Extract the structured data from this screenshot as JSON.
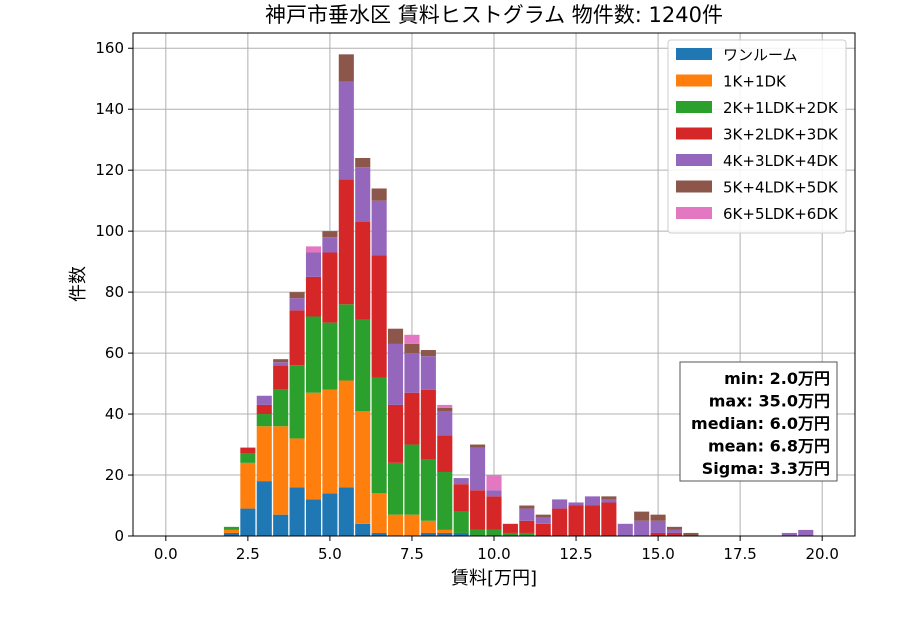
{
  "chart_data": {
    "type": "bar",
    "stacked": true,
    "title": "神戸市垂水区 賃料ヒストグラム 物件数: 1240件",
    "xlabel": "賃料[万円]",
    "ylabel": "件数",
    "xlim": [
      -1.0,
      21.0
    ],
    "ylim": [
      0,
      165
    ],
    "xticks": [
      0.0,
      2.5,
      5.0,
      7.5,
      10.0,
      12.5,
      15.0,
      17.5,
      20.0
    ],
    "xtick_labels": [
      "0.0",
      "2.5",
      "5.0",
      "7.5",
      "10.0",
      "12.5",
      "15.0",
      "17.5",
      "20.0"
    ],
    "yticks": [
      0,
      20,
      40,
      60,
      80,
      100,
      120,
      140,
      160
    ],
    "ytick_labels": [
      "0",
      "20",
      "40",
      "60",
      "80",
      "100",
      "120",
      "140",
      "160"
    ],
    "grid": true,
    "legend_position": "top-right",
    "bin_width": 0.5,
    "x": [
      2.0,
      2.5,
      3.0,
      3.5,
      4.0,
      4.5,
      5.0,
      5.5,
      6.0,
      6.5,
      7.0,
      7.5,
      8.0,
      8.5,
      9.0,
      9.5,
      10.0,
      10.5,
      11.0,
      11.5,
      12.0,
      12.5,
      13.0,
      13.5,
      14.0,
      14.5,
      15.0,
      15.5,
      16.0,
      19.0,
      19.5
    ],
    "series": [
      {
        "name": "ワンルーム",
        "color": "#1f77b4",
        "values": [
          1,
          9,
          18,
          7,
          16,
          12,
          14,
          16,
          4,
          1,
          0,
          0,
          1,
          1,
          1,
          0,
          0,
          0,
          0,
          0,
          0,
          0,
          0,
          0,
          0,
          0,
          0,
          0,
          0,
          0,
          0
        ]
      },
      {
        "name": "1K+1DK",
        "color": "#ff7f0e",
        "values": [
          1,
          15,
          18,
          29,
          16,
          35,
          34,
          35,
          37,
          13,
          7,
          7,
          4,
          1,
          0,
          0,
          0,
          0,
          0,
          0,
          0,
          0,
          0,
          0,
          0,
          0,
          0,
          0,
          0,
          0,
          0
        ]
      },
      {
        "name": "2K+1LDK+2DK",
        "color": "#2ca02c",
        "values": [
          1,
          3,
          4,
          12,
          24,
          25,
          22,
          25,
          30,
          38,
          17,
          23,
          20,
          19,
          7,
          2,
          2,
          1,
          1,
          0,
          0,
          0,
          0,
          0,
          0,
          0,
          0,
          0,
          0,
          0,
          0
        ]
      },
      {
        "name": "3K+2LDK+3DK",
        "color": "#d62728",
        "values": [
          0,
          2,
          3,
          8,
          18,
          13,
          23,
          41,
          32,
          40,
          19,
          17,
          23,
          12,
          9,
          13,
          11,
          3,
          4,
          4,
          9,
          10,
          10,
          11,
          0,
          0,
          1,
          1,
          0,
          0,
          0
        ]
      },
      {
        "name": "4K+3LDK+4DK",
        "color": "#9467bd",
        "values": [
          0,
          0,
          3,
          1,
          4,
          8,
          5,
          32,
          18,
          18,
          20,
          13,
          11,
          8,
          2,
          14,
          2,
          0,
          4,
          2,
          3,
          1,
          3,
          1,
          4,
          5,
          4,
          1,
          0,
          1,
          2
        ]
      },
      {
        "name": "5K+4LDK+5DK",
        "color": "#8c564b",
        "values": [
          0,
          0,
          0,
          1,
          2,
          0,
          2,
          9,
          3,
          4,
          5,
          3,
          2,
          1,
          0,
          1,
          0,
          0,
          1,
          1,
          0,
          0,
          0,
          1,
          0,
          3,
          2,
          1,
          1,
          0,
          0
        ]
      },
      {
        "name": "6K+5LDK+6DK",
        "color": "#e377c2",
        "values": [
          0,
          0,
          0,
          0,
          0,
          2,
          0,
          0,
          0,
          0,
          0,
          3,
          0,
          1,
          0,
          0,
          5,
          0,
          0,
          0,
          0,
          0,
          0,
          0,
          0,
          0,
          0,
          0,
          0,
          0,
          0
        ]
      }
    ],
    "annotations": [
      "min: 2.0万円",
      "max: 35.0万円",
      "median: 6.0万円",
      "mean: 6.8万円",
      "Sigma: 3.3万円"
    ]
  }
}
